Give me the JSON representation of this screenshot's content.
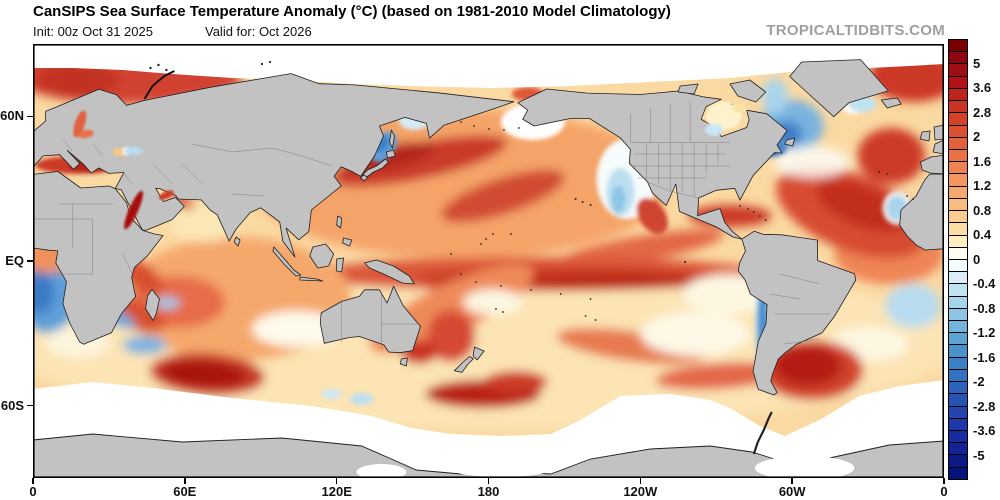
{
  "header": {
    "title": "CanSIPS Sea Surface Temperature Anomaly (°C) (based on 1981-2010 Model Climatology)",
    "init_label": "Init: 00z Oct 31 2025",
    "valid_label": "Valid for: Oct 2026",
    "watermark": "TROPICALTIDBITS.COM"
  },
  "axes": {
    "x_tick_labels": [
      "0",
      "60E",
      "120E",
      "180",
      "120W",
      "60W",
      "0"
    ],
    "y_tick_labels": [
      "60N",
      "EQ",
      "60S"
    ]
  },
  "colorbar": {
    "unit": "°C",
    "tick_labels": [
      "5",
      "3.6",
      "2.8",
      "2",
      "1.6",
      "1.2",
      "0.8",
      "0.4",
      "0",
      "-0.4",
      "-0.8",
      "-1.2",
      "-1.6",
      "-2",
      "-2.8",
      "-3.6",
      "-5"
    ],
    "colors": [
      "#7a0000",
      "#8c0711",
      "#9e0e15",
      "#b01218",
      "#bd241d",
      "#c93322",
      "#d34128",
      "#db5130",
      "#e2613a",
      "#e97245",
      "#ee8451",
      "#f3965f",
      "#f6a96e",
      "#f9bb7e",
      "#fbcc90",
      "#fcdda4",
      "#feeec0",
      "#fffcf0",
      "#f4fbfd",
      "#daeef7",
      "#c0e2f1",
      "#a6d4ea",
      "#8cc5e3",
      "#73b5dc",
      "#5ba4d4",
      "#4793cc",
      "#3a82c5",
      "#3272bf",
      "#2c62b9",
      "#2753b3",
      "#2345ad",
      "#1e38a7",
      "#192c9f",
      "#132295",
      "#0c1a89",
      "#06137b"
    ]
  },
  "map_colors": {
    "land": "#c2c2c2",
    "coastline": "#1f1f1f",
    "no_data": "#ffffff",
    "warm_base": "#fbd9a2"
  }
}
